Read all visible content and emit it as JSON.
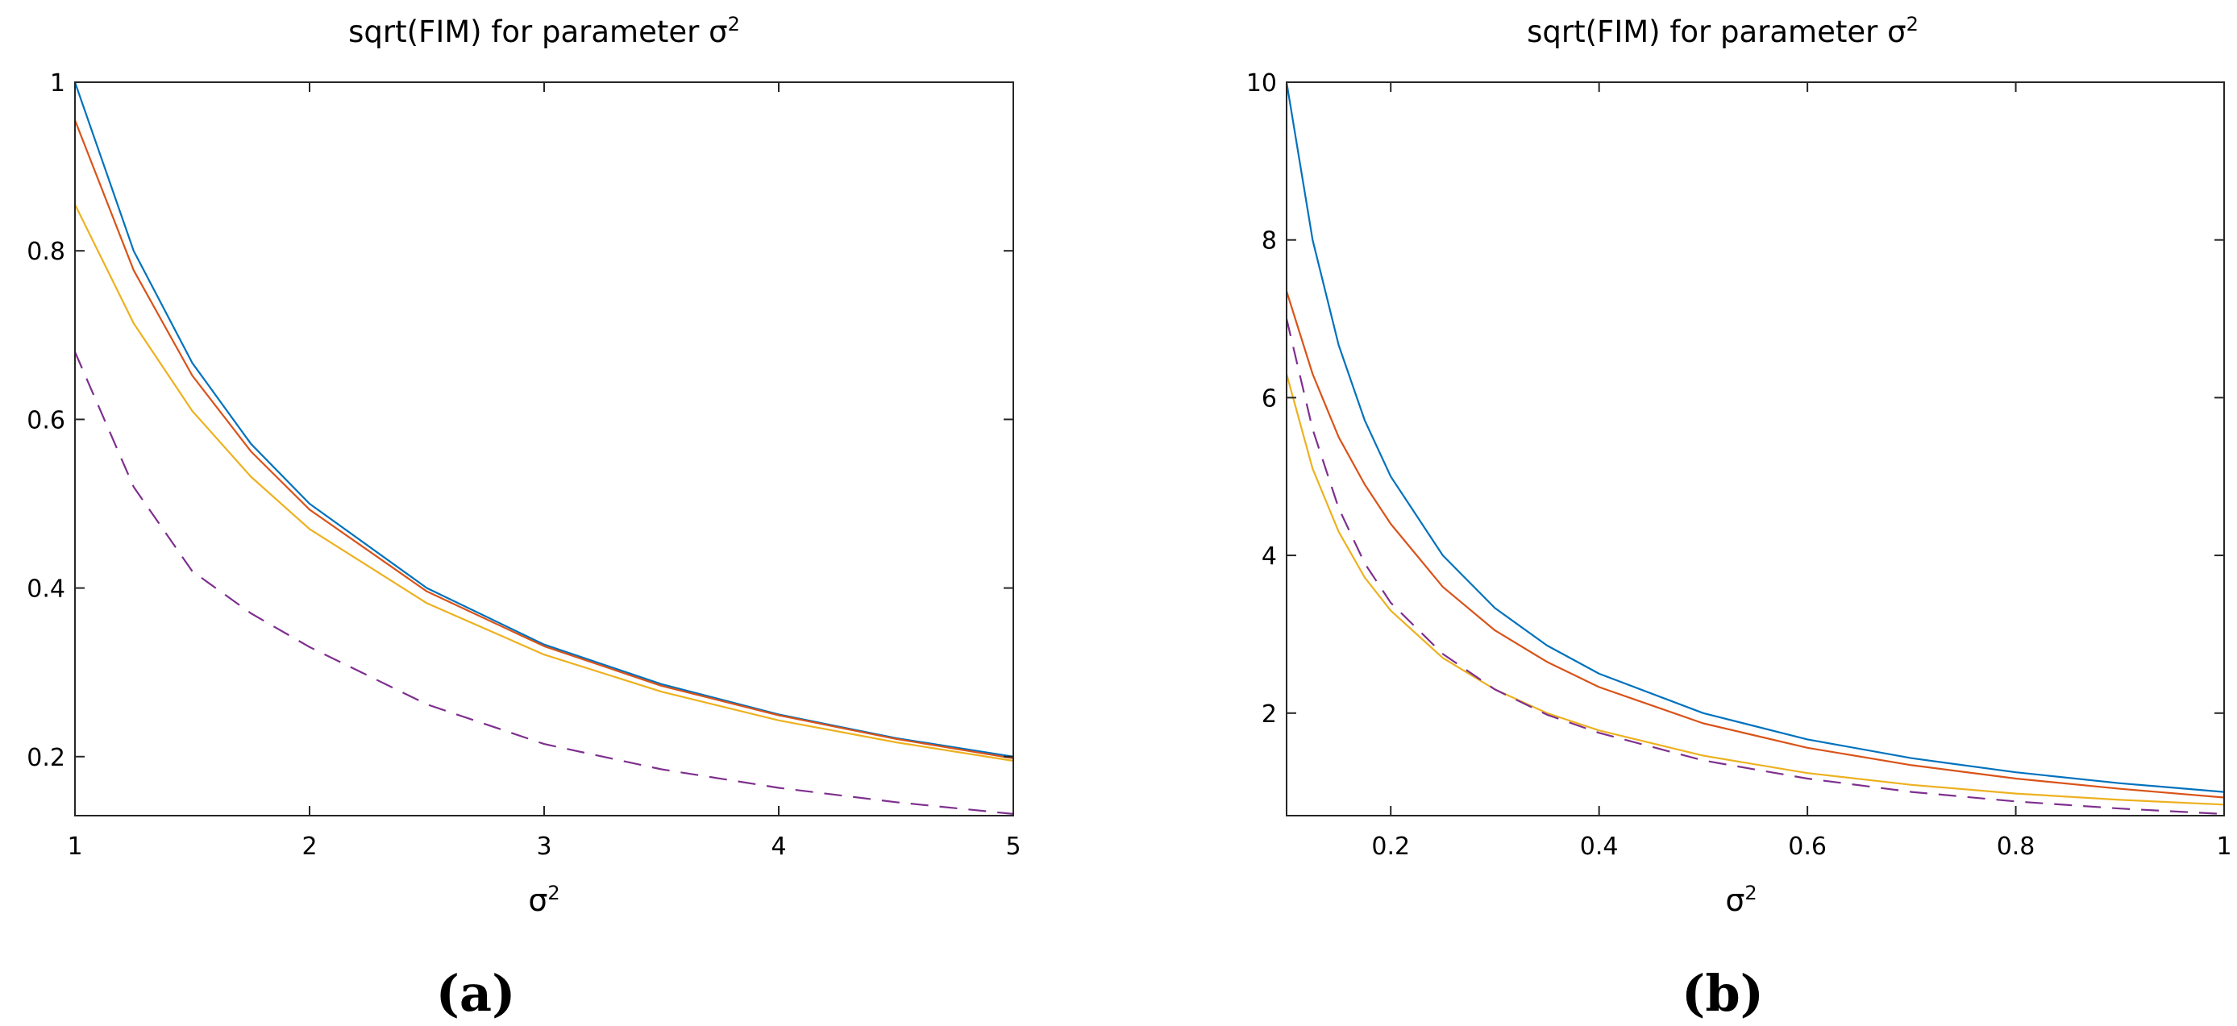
{
  "chart_data": [
    {
      "type": "line",
      "title": "sqrt(FIM) for parameter σ",
      "title_sup": "2",
      "xlabel": "σ",
      "xlabel_sup": "2",
      "ylabel": "",
      "panel_label": "(a)",
      "xlim": [
        1,
        5
      ],
      "ylim": [
        0.13,
        1.0
      ],
      "xticks": [
        1,
        2,
        3,
        4,
        5
      ],
      "yticks": [
        0.2,
        0.4,
        0.6,
        0.8,
        1
      ],
      "grid": false,
      "series": [
        {
          "color": "#0072BD",
          "dashed": false,
          "x": [
            1,
            1.25,
            1.5,
            1.75,
            2,
            2.5,
            3,
            3.5,
            4,
            4.5,
            5
          ],
          "y": [
            1.0,
            0.8,
            0.667,
            0.571,
            0.5,
            0.4,
            0.333,
            0.286,
            0.25,
            0.222,
            0.2
          ]
        },
        {
          "color": "#D95319",
          "dashed": false,
          "x": [
            1,
            1.25,
            1.5,
            1.75,
            2,
            2.5,
            3,
            3.5,
            4,
            4.5,
            5
          ],
          "y": [
            0.955,
            0.777,
            0.652,
            0.562,
            0.493,
            0.396,
            0.331,
            0.284,
            0.249,
            0.221,
            0.198
          ]
        },
        {
          "color": "#EDB120",
          "dashed": false,
          "x": [
            1,
            1.25,
            1.5,
            1.75,
            2,
            2.5,
            3,
            3.5,
            4,
            4.5,
            5
          ],
          "y": [
            0.855,
            0.714,
            0.61,
            0.532,
            0.47,
            0.382,
            0.321,
            0.277,
            0.243,
            0.217,
            0.195
          ]
        },
        {
          "color": "#7E2F8E",
          "dashed": true,
          "x": [
            1,
            1.25,
            1.5,
            1.75,
            2,
            2.5,
            3,
            3.5,
            4,
            4.5,
            5
          ],
          "y": [
            0.68,
            0.52,
            0.42,
            0.37,
            0.33,
            0.262,
            0.215,
            0.185,
            0.163,
            0.146,
            0.132
          ]
        }
      ]
    },
    {
      "type": "line",
      "title": "sqrt(FIM) for parameter σ",
      "title_sup": "2",
      "xlabel": "σ",
      "xlabel_sup": "2",
      "ylabel": "",
      "panel_label": "(b)",
      "xlim": [
        0.1,
        1.0
      ],
      "ylim": [
        0.7,
        10.0
      ],
      "xticks": [
        0.2,
        0.4,
        0.6,
        0.8,
        1
      ],
      "yticks": [
        2,
        4,
        6,
        8,
        10
      ],
      "grid": false,
      "series": [
        {
          "color": "#0072BD",
          "dashed": false,
          "x": [
            0.1,
            0.125,
            0.15,
            0.175,
            0.2,
            0.25,
            0.3,
            0.35,
            0.4,
            0.5,
            0.6,
            0.7,
            0.8,
            0.9,
            1.0
          ],
          "y": [
            10.0,
            8.0,
            6.667,
            5.714,
            5.0,
            4.0,
            3.333,
            2.857,
            2.5,
            2.0,
            1.667,
            1.429,
            1.25,
            1.111,
            1.0
          ]
        },
        {
          "color": "#D95319",
          "dashed": false,
          "x": [
            0.1,
            0.125,
            0.15,
            0.175,
            0.2,
            0.25,
            0.3,
            0.35,
            0.4,
            0.5,
            0.6,
            0.7,
            0.8,
            0.9,
            1.0
          ],
          "y": [
            7.35,
            6.3,
            5.5,
            4.9,
            4.4,
            3.6,
            3.05,
            2.65,
            2.33,
            1.87,
            1.56,
            1.34,
            1.17,
            1.04,
            0.93
          ]
        },
        {
          "color": "#EDB120",
          "dashed": false,
          "x": [
            0.1,
            0.125,
            0.15,
            0.175,
            0.2,
            0.25,
            0.3,
            0.35,
            0.4,
            0.5,
            0.6,
            0.7,
            0.8,
            0.9,
            1.0
          ],
          "y": [
            6.3,
            5.1,
            4.3,
            3.72,
            3.3,
            2.7,
            2.3,
            2.0,
            1.78,
            1.46,
            1.24,
            1.09,
            0.98,
            0.9,
            0.84
          ]
        },
        {
          "color": "#7E2F8E",
          "dashed": true,
          "x": [
            0.1,
            0.125,
            0.15,
            0.175,
            0.2,
            0.25,
            0.3,
            0.35,
            0.4,
            0.5,
            0.6,
            0.7,
            0.8,
            0.9,
            1.0
          ],
          "y": [
            7.0,
            5.6,
            4.6,
            3.9,
            3.4,
            2.75,
            2.3,
            1.98,
            1.75,
            1.4,
            1.17,
            1.0,
            0.88,
            0.79,
            0.72
          ]
        }
      ]
    }
  ]
}
